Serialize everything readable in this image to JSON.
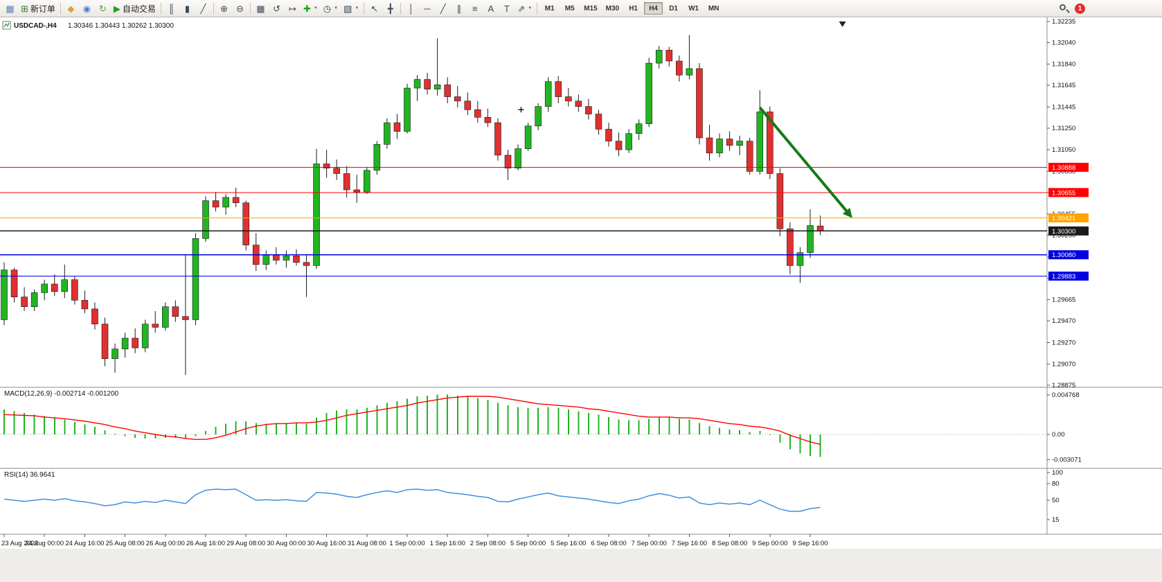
{
  "toolbar": {
    "buttons": [
      {
        "type": "icon",
        "name": "charts-window-button",
        "glyph": "▦",
        "color": "#5b82b8"
      },
      {
        "type": "labeled",
        "name": "new-order-button",
        "glyph": "⊞",
        "color": "#2f7f2f",
        "label": "新订单"
      },
      {
        "type": "sep"
      },
      {
        "type": "icon",
        "name": "mql5-market-button",
        "glyph": "◆",
        "color": "#dca23a"
      },
      {
        "type": "icon",
        "name": "mql5-community-button",
        "glyph": "◉",
        "color": "#4a7fd4"
      },
      {
        "type": "icon",
        "name": "refresh-button",
        "glyph": "↻",
        "color": "#5a9e46"
      },
      {
        "type": "labeled",
        "name": "autotrading-button",
        "glyph": "▶",
        "color": "#18a318",
        "label": "自动交易"
      },
      {
        "type": "sep"
      },
      {
        "type": "icon",
        "name": "bar-chart-button",
        "glyph": "║",
        "color": "#3a4a5a"
      },
      {
        "type": "icon",
        "name": "candlestick-chart-button",
        "glyph": "▮",
        "color": "#3a4a5a"
      },
      {
        "type": "icon",
        "name": "line-chart-button",
        "glyph": "╱",
        "color": "#3a4a5a"
      },
      {
        "type": "sep"
      },
      {
        "type": "icon",
        "name": "zoom-in-button",
        "glyph": "⊕",
        "color": "#3a4a5a"
      },
      {
        "type": "icon",
        "name": "zoom-out-button",
        "glyph": "⊖",
        "color": "#3a4a5a"
      },
      {
        "type": "sep"
      },
      {
        "type": "icon",
        "name": "tile-windows-button",
        "glyph": "▦",
        "color": "#3a4a5a"
      },
      {
        "type": "icon",
        "name": "auto-scroll-button",
        "glyph": "↺",
        "color": "#3a4a5a"
      },
      {
        "type": "icon",
        "name": "chart-shift-button",
        "glyph": "↦",
        "color": "#3a4a5a"
      },
      {
        "type": "icon",
        "name": "indicators-button",
        "glyph": "✚",
        "color": "#18a318",
        "dropdown": true
      },
      {
        "type": "icon",
        "name": "periods-button",
        "glyph": "◷",
        "color": "#3a4a5a",
        "dropdown": true
      },
      {
        "type": "icon",
        "name": "templates-button",
        "glyph": "▧",
        "color": "#3a4a5a",
        "dropdown": true
      },
      {
        "type": "sep"
      },
      {
        "type": "icon",
        "name": "cursor-button",
        "glyph": "↖",
        "color": "#3a4a5a"
      },
      {
        "type": "icon",
        "name": "crosshair-button",
        "glyph": "╋",
        "color": "#3a4a5a"
      },
      {
        "type": "sep"
      },
      {
        "type": "icon",
        "name": "vertical-line-button",
        "glyph": "│",
        "color": "#3a4a5a"
      },
      {
        "type": "icon",
        "name": "horizontal-line-button",
        "glyph": "─",
        "color": "#3a4a5a"
      },
      {
        "type": "icon",
        "name": "trendline-button",
        "glyph": "╱",
        "color": "#3a4a5a"
      },
      {
        "type": "icon",
        "name": "equidistant-channel-button",
        "glyph": "∥",
        "color": "#3a4a5a"
      },
      {
        "type": "icon",
        "name": "fibonacci-button",
        "glyph": "≡",
        "color": "#3a4a5a"
      },
      {
        "type": "icon",
        "name": "text-button",
        "glyph": "A",
        "color": "#3a4a5a"
      },
      {
        "type": "icon",
        "name": "text-label-button",
        "glyph": "T",
        "color": "#3a4a5a"
      },
      {
        "type": "icon",
        "name": "arrows-button",
        "glyph": "⇗",
        "color": "#3a4a5a",
        "dropdown": true
      },
      {
        "type": "sep"
      }
    ],
    "timeframes": [
      "M1",
      "M5",
      "M15",
      "M30",
      "H1",
      "H4",
      "D1",
      "W1",
      "MN"
    ],
    "active_timeframe": "H4",
    "notification_badge": "1"
  },
  "chart_data": {
    "type": "candlestick",
    "colors": {
      "bull": "#22b422",
      "bear": "#e03030",
      "macd_hist": "#22b422",
      "macd_signal": "#ff0000",
      "rsi_line": "#3f8fde",
      "arrow": "#157a15"
    },
    "main": {
      "symbol_label": "USDCAD-,H4",
      "ohlc_label": "1.30346 1.30443 1.30262 1.30300",
      "price_axis_ticks": [
        "1.32235",
        "1.32040",
        "1.31840",
        "1.31645",
        "1.31445",
        "1.31250",
        "1.31050",
        "1.30850",
        "1.30655",
        "1.30455",
        "1.30260",
        "1.30060",
        "1.29865",
        "1.29665",
        "1.29470",
        "1.29270",
        "1.29070",
        "1.28875"
      ],
      "hlines": [
        {
          "price": 1.30888,
          "label": "1.30888",
          "color": "#ff0000"
        },
        {
          "price": 1.30655,
          "label": "1.30655",
          "color": "#ff0000"
        },
        {
          "price": 1.30421,
          "label": "1.30421",
          "color": "#ffa500"
        },
        {
          "price": 1.303,
          "label": "1.30300",
          "color": "#1a1a1a"
        },
        {
          "price": 1.3008,
          "label": "1.30080",
          "color": "#0000e0"
        },
        {
          "price": 1.29883,
          "label": "1.29883",
          "color": "#0000e0"
        }
      ],
      "time_axis": [
        "23 Aug 2022",
        "24 Aug 00:00",
        "24 Aug 16:00",
        "25 Aug 08:00",
        "26 Aug 00:00",
        "26 Aug 16:00",
        "29 Aug 08:00",
        "30 Aug 00:00",
        "30 Aug 16:00",
        "31 Aug 08:00",
        "1 Sep 00:00",
        "1 Sep 16:00",
        "2 Sep 08:00",
        "5 Sep 00:00",
        "5 Sep 16:00",
        "6 Sep 08:00",
        "7 Sep 00:00",
        "7 Sep 16:00",
        "8 Sep 08:00",
        "9 Sep 00:00",
        "9 Sep 16:00"
      ],
      "candles": [
        [
          1.2948,
          1.3001,
          1.2943,
          1.2994
        ],
        [
          1.2994,
          1.2996,
          1.2964,
          1.2969
        ],
        [
          1.2969,
          1.2978,
          1.2956,
          1.296
        ],
        [
          1.296,
          1.2976,
          1.2956,
          1.2973
        ],
        [
          1.2973,
          1.2985,
          1.2966,
          1.2981
        ],
        [
          1.2981,
          1.299,
          1.297,
          1.2974
        ],
        [
          1.2974,
          1.2999,
          1.2968,
          1.2985
        ],
        [
          1.2985,
          1.2988,
          1.2962,
          1.2966
        ],
        [
          1.2966,
          1.2975,
          1.2954,
          1.2958
        ],
        [
          1.2958,
          1.2964,
          1.2939,
          1.2944
        ],
        [
          1.2944,
          1.295,
          1.2905,
          1.2912
        ],
        [
          1.2912,
          1.2926,
          1.2899,
          1.2921
        ],
        [
          1.2921,
          1.2936,
          1.2913,
          1.2931
        ],
        [
          1.2931,
          1.294,
          1.2917,
          1.2922
        ],
        [
          1.2922,
          1.2948,
          1.2918,
          1.2944
        ],
        [
          1.2944,
          1.2956,
          1.2936,
          1.2941
        ],
        [
          1.2941,
          1.2964,
          1.2938,
          1.296
        ],
        [
          1.296,
          1.2966,
          1.2946,
          1.2951
        ],
        [
          1.2951,
          1.3008,
          1.2897,
          1.2948
        ],
        [
          1.2948,
          1.3028,
          1.2943,
          1.3023
        ],
        [
          1.3023,
          1.3062,
          1.302,
          1.3058
        ],
        [
          1.3058,
          1.3066,
          1.3048,
          1.3052
        ],
        [
          1.3052,
          1.3064,
          1.3045,
          1.3061
        ],
        [
          1.3061,
          1.307,
          1.3052,
          1.3056
        ],
        [
          1.3056,
          1.3058,
          1.3012,
          1.3017
        ],
        [
          1.3017,
          1.3028,
          1.2993,
          1.2999
        ],
        [
          1.2999,
          1.3012,
          1.2994,
          1.3008
        ],
        [
          1.3008,
          1.3015,
          1.2999,
          1.3003
        ],
        [
          1.3003,
          1.3012,
          1.2996,
          1.3007
        ],
        [
          1.3007,
          1.3013,
          1.2998,
          1.3001
        ],
        [
          1.3001,
          1.3008,
          1.2969,
          1.2998
        ],
        [
          1.2998,
          1.3106,
          1.2995,
          1.3092
        ],
        [
          1.3092,
          1.3105,
          1.3079,
          1.3088
        ],
        [
          1.3088,
          1.3096,
          1.3077,
          1.3083
        ],
        [
          1.3083,
          1.309,
          1.3061,
          1.3068
        ],
        [
          1.3068,
          1.3082,
          1.3056,
          1.3066
        ],
        [
          1.3066,
          1.3089,
          1.3064,
          1.3086
        ],
        [
          1.3086,
          1.3113,
          1.3082,
          1.311
        ],
        [
          1.311,
          1.3134,
          1.3106,
          1.313
        ],
        [
          1.313,
          1.3138,
          1.3115,
          1.3122
        ],
        [
          1.3122,
          1.3166,
          1.312,
          1.3162
        ],
        [
          1.3162,
          1.3174,
          1.315,
          1.317
        ],
        [
          1.317,
          1.3176,
          1.3156,
          1.3161
        ],
        [
          1.3161,
          1.3208,
          1.3155,
          1.3165
        ],
        [
          1.3165,
          1.3172,
          1.3148,
          1.3154
        ],
        [
          1.3154,
          1.3164,
          1.3144,
          1.315
        ],
        [
          1.315,
          1.3158,
          1.3137,
          1.3142
        ],
        [
          1.3142,
          1.315,
          1.313,
          1.3135
        ],
        [
          1.3135,
          1.3143,
          1.3126,
          1.313
        ],
        [
          1.313,
          1.3134,
          1.3095,
          1.31
        ],
        [
          1.31,
          1.3105,
          1.3077,
          1.3088
        ],
        [
          1.3088,
          1.311,
          1.3086,
          1.3106
        ],
        [
          1.3106,
          1.313,
          1.3104,
          1.3127
        ],
        [
          1.3127,
          1.3148,
          1.3123,
          1.3145
        ],
        [
          1.3145,
          1.3172,
          1.314,
          1.3168
        ],
        [
          1.3168,
          1.3173,
          1.3148,
          1.3154
        ],
        [
          1.3154,
          1.3162,
          1.3145,
          1.315
        ],
        [
          1.315,
          1.3156,
          1.314,
          1.3145
        ],
        [
          1.3145,
          1.3152,
          1.3133,
          1.3138
        ],
        [
          1.3138,
          1.3142,
          1.3119,
          1.3124
        ],
        [
          1.3124,
          1.313,
          1.3108,
          1.3113
        ],
        [
          1.3113,
          1.3121,
          1.3099,
          1.3105
        ],
        [
          1.3105,
          1.3124,
          1.3102,
          1.312
        ],
        [
          1.312,
          1.3133,
          1.3114,
          1.3129
        ],
        [
          1.3129,
          1.319,
          1.3126,
          1.3185
        ],
        [
          1.3185,
          1.3201,
          1.318,
          1.3197
        ],
        [
          1.3197,
          1.32,
          1.3182,
          1.3187
        ],
        [
          1.3187,
          1.3192,
          1.3168,
          1.3174
        ],
        [
          1.3174,
          1.3211,
          1.317,
          1.318
        ],
        [
          1.318,
          1.3185,
          1.311,
          1.3116
        ],
        [
          1.3116,
          1.3128,
          1.3095,
          1.3102
        ],
        [
          1.3102,
          1.312,
          1.3098,
          1.3115
        ],
        [
          1.3115,
          1.3122,
          1.3104,
          1.3109
        ],
        [
          1.3109,
          1.3118,
          1.31,
          1.3113
        ],
        [
          1.3113,
          1.3116,
          1.3082,
          1.3085
        ],
        [
          1.3085,
          1.316,
          1.3082,
          1.314
        ],
        [
          1.314,
          1.3145,
          1.3078,
          1.3083
        ],
        [
          1.3083,
          1.3088,
          1.3025,
          1.3032
        ],
        [
          1.3032,
          1.3038,
          1.299,
          1.2998
        ],
        [
          1.2998,
          1.3015,
          1.2982,
          1.301
        ],
        [
          1.301,
          1.305,
          1.3005,
          1.3035
        ],
        [
          1.30346,
          1.30443,
          1.30262,
          1.303
        ]
      ],
      "arrow": {
        "from": {
          "bar": 75,
          "price": 1.3144
        },
        "to": {
          "bar": 84,
          "price": 1.3044
        },
        "color": "#157a15"
      },
      "cross_marker": {
        "bar": 51.3,
        "price": 1.3142
      },
      "shift_marker": {
        "bar": 83.2
      }
    },
    "macd": {
      "label": "MACD(12,26,9)",
      "values_label": "-0.002714 -0.001200",
      "axis_ticks": [
        {
          "label": "0.004768",
          "value": 0.004768
        },
        {
          "label": "0.00",
          "value": 0
        },
        {
          "label": "-0.003071",
          "value": -0.003071
        }
      ],
      "histogram": [
        0.003,
        0.0028,
        0.0026,
        0.0024,
        0.0022,
        0.002,
        0.0018,
        0.0015,
        0.0012,
        0.0009,
        0.0005,
        0.0001,
        -0.0002,
        -0.0004,
        -0.0005,
        -0.0005,
        -0.0004,
        -0.0004,
        -0.0005,
        -0.0002,
        0.0004,
        0.0009,
        0.0013,
        0.0016,
        0.0016,
        0.0014,
        0.0013,
        0.0013,
        0.0014,
        0.0014,
        0.0013,
        0.002,
        0.0026,
        0.0029,
        0.003,
        0.003,
        0.0032,
        0.0035,
        0.0038,
        0.004,
        0.0043,
        0.0046,
        0.0047,
        0.0048,
        0.0048,
        0.0047,
        0.0046,
        0.0044,
        0.0042,
        0.0038,
        0.0035,
        0.0033,
        0.0032,
        0.0032,
        0.0033,
        0.0032,
        0.003,
        0.0028,
        0.0026,
        0.0024,
        0.0021,
        0.0018,
        0.0017,
        0.0017,
        0.0019,
        0.0021,
        0.0021,
        0.0019,
        0.0018,
        0.0014,
        0.001,
        0.0008,
        0.0006,
        0.0005,
        0.0003,
        0.0004,
        -0.0001,
        -0.001,
        -0.0018,
        -0.0023,
        -0.0026,
        -0.002714
      ],
      "signal": [
        0.0024,
        0.00235,
        0.0023,
        0.00225,
        0.0021,
        0.002,
        0.0019,
        0.00175,
        0.0016,
        0.0014,
        0.0012,
        0.0009,
        0.0007,
        0.0004,
        0.0002,
        0.0,
        -0.0002,
        -0.0003,
        -0.0005,
        -0.0006,
        -0.0006,
        -0.0004,
        -0.0001,
        0.0003,
        0.0007,
        0.001,
        0.0012,
        0.0013,
        0.0013,
        0.0014,
        0.0014,
        0.0015,
        0.0017,
        0.002,
        0.0023,
        0.0025,
        0.0027,
        0.0029,
        0.0031,
        0.0033,
        0.0035,
        0.0038,
        0.004,
        0.0042,
        0.0044,
        0.0045,
        0.0046,
        0.0046,
        0.0046,
        0.0045,
        0.0043,
        0.0041,
        0.0039,
        0.0037,
        0.0036,
        0.0035,
        0.0034,
        0.0033,
        0.0031,
        0.003,
        0.0028,
        0.0026,
        0.0024,
        0.0022,
        0.0021,
        0.0021,
        0.0021,
        0.002,
        0.002,
        0.0019,
        0.0017,
        0.0015,
        0.0013,
        0.0012,
        0.001,
        0.0009,
        0.0007,
        0.0004,
        -0.0001,
        -0.0005,
        -0.0009,
        -0.0012
      ]
    },
    "rsi": {
      "label": "RSI(14)",
      "value": "36.9641",
      "axis_ticks": [
        {
          "label": "100",
          "value": 100
        },
        {
          "label": "80",
          "value": 80
        },
        {
          "label": "50",
          "value": 50
        },
        {
          "label": "15",
          "value": 15
        }
      ],
      "values": [
        52,
        50,
        48,
        50,
        52,
        50,
        53,
        49,
        47,
        44,
        40,
        42,
        47,
        45,
        48,
        46,
        50,
        47,
        44,
        60,
        68,
        70,
        69,
        70,
        60,
        50,
        51,
        50,
        51,
        49,
        48,
        64,
        63,
        61,
        57,
        55,
        60,
        64,
        67,
        64,
        69,
        70,
        68,
        69,
        64,
        62,
        60,
        57,
        55,
        48,
        47,
        52,
        56,
        60,
        63,
        58,
        56,
        54,
        52,
        49,
        46,
        44,
        49,
        52,
        58,
        62,
        59,
        54,
        56,
        45,
        42,
        45,
        43,
        45,
        42,
        50,
        42,
        34,
        30,
        30,
        35,
        36.96
      ]
    }
  }
}
